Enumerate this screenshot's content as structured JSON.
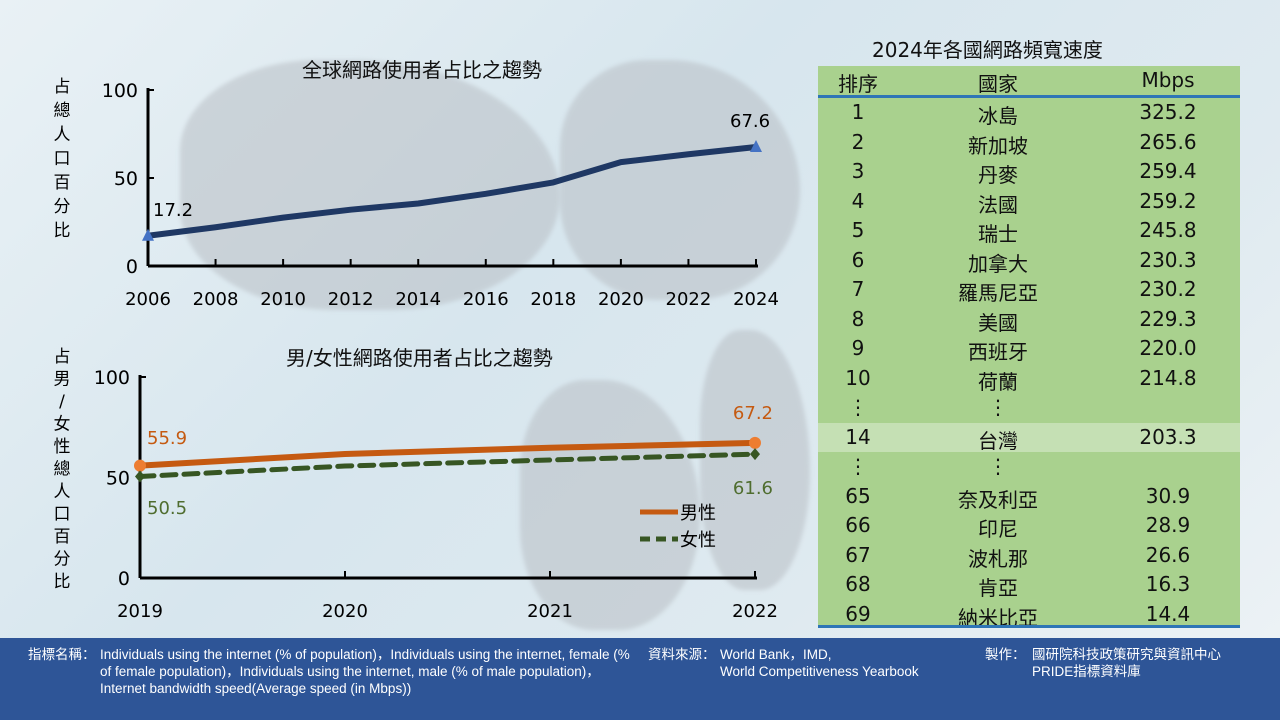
{
  "chart_data": [
    {
      "type": "line",
      "title": "全球網路使用者占比之趨勢",
      "ylabel": "占總人口百分比",
      "xlabel": "",
      "ylim": [
        0,
        100
      ],
      "yticks": [
        0,
        50,
        100
      ],
      "xticks": [
        "2006",
        "2008",
        "2010",
        "2012",
        "2014",
        "2016",
        "2018",
        "2020",
        "2022",
        "2024"
      ],
      "x": [
        2006,
        2008,
        2010,
        2012,
        2014,
        2016,
        2018,
        2020,
        2022,
        2024
      ],
      "series": [
        {
          "name": "全球",
          "values": [
            17.2,
            22,
            27.5,
            32,
            35.5,
            41,
            47.5,
            59,
            63.5,
            67.6
          ],
          "color": "#1f3864"
        }
      ],
      "annotations": [
        "17.2",
        "67.6"
      ],
      "grid": false
    },
    {
      "type": "line",
      "title": "男/女性網路使用者占比之趨勢",
      "ylabel": "占男/女性總人口百分比",
      "xlabel": "",
      "ylim": [
        0,
        100
      ],
      "yticks": [
        0,
        50,
        100
      ],
      "xticks": [
        "2019",
        "2020",
        "2021",
        "2022"
      ],
      "x": [
        2019,
        2020,
        2021,
        2022
      ],
      "series": [
        {
          "name": "男性",
          "values": [
            55.9,
            61.7,
            64.8,
            67.2
          ],
          "color": "#c55a11",
          "labels": [
            "55.9",
            "67.2"
          ]
        },
        {
          "name": "女性",
          "values": [
            50.5,
            55.7,
            58.7,
            61.6
          ],
          "color": "#375623",
          "labels": [
            "50.5",
            "61.6"
          ]
        }
      ],
      "legend": "bottom-right",
      "grid": false
    },
    {
      "type": "table",
      "title": "2024年各國網路頻寬速度",
      "columns": [
        "排序",
        "國家",
        "Mbps"
      ],
      "rows": [
        [
          "1",
          "冰島",
          "325.2"
        ],
        [
          "2",
          "新加坡",
          "265.6"
        ],
        [
          "3",
          "丹麥",
          "259.4"
        ],
        [
          "4",
          "法國",
          "259.2"
        ],
        [
          "5",
          "瑞士",
          "245.8"
        ],
        [
          "6",
          "加拿大",
          "230.3"
        ],
        [
          "7",
          "羅馬尼亞",
          "230.2"
        ],
        [
          "8",
          "美國",
          "229.3"
        ],
        [
          "9",
          "西班牙",
          "220.0"
        ],
        [
          "10",
          "荷蘭",
          "214.8"
        ],
        [
          "⋮",
          "⋮",
          ""
        ],
        [
          "14",
          "台灣",
          "203.3"
        ],
        [
          "⋮",
          "⋮",
          ""
        ],
        [
          "65",
          "奈及利亞",
          "30.9"
        ],
        [
          "66",
          "印尼",
          "28.9"
        ],
        [
          "67",
          "波札那",
          "26.6"
        ],
        [
          "68",
          "肯亞",
          "16.3"
        ],
        [
          "69",
          "納米比亞",
          "14.4"
        ]
      ],
      "highlight_row": 11
    }
  ],
  "footer": {
    "indicator_label": "指標名稱：",
    "indicator_text": "Individuals using the internet (% of population)，Individuals using the internet, female (% of female population)，Individuals using the internet, male (% of male population)，Internet bandwidth speed(Average speed (in Mbps))",
    "source_label": "資料來源：",
    "source_line1": "World Bank，IMD,",
    "source_line2": "World Competitiveness Yearbook",
    "maker_label": "製作：",
    "maker_line1": "國研院科技政策研究與資訊中心",
    "maker_line2": "PRIDE指標資料庫"
  },
  "colors": {
    "footer": "#2e5597",
    "table": "#a9d18e",
    "highlight": "#c5e0b4",
    "rule": "#2e75b6"
  }
}
